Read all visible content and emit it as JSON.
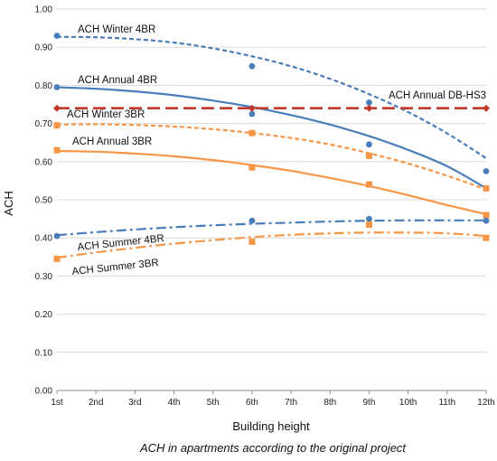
{
  "chart_data": {
    "type": "line",
    "title": "",
    "xlabel": "Building height",
    "ylabel": "ACH",
    "caption": "ACH in apartments according to the original project",
    "categories": [
      "1st",
      "2nd",
      "3rd",
      "4th",
      "5th",
      "6th",
      "7th",
      "8th",
      "9th",
      "10th",
      "11th",
      "12th"
    ],
    "ylim": [
      0,
      1.0
    ],
    "yticks": [
      "0.00",
      "0.10",
      "0.20",
      "0.30",
      "0.40",
      "0.50",
      "0.60",
      "0.70",
      "0.80",
      "0.90",
      "1.00"
    ],
    "grid": true,
    "legend": "none",
    "series": [
      {
        "name": "ACH Winter 4BR",
        "color": "#4a7ebb",
        "dash": "dashed",
        "marker": "circle",
        "points": [
          [
            "1st",
            0.93
          ],
          [
            "6th",
            0.85
          ],
          [
            "9th",
            0.755
          ],
          [
            "12th",
            0.575
          ]
        ],
        "trend": [
          0.927,
          0.926,
          0.921,
          0.912,
          0.897,
          0.876,
          0.85,
          0.817,
          0.777,
          0.73,
          0.674,
          0.609
        ]
      },
      {
        "name": "ACH Annual 4BR",
        "color": "#4a7ebb",
        "dash": "solid",
        "marker": "circle",
        "points": [
          [
            "1st",
            0.795
          ],
          [
            "6th",
            0.725
          ],
          [
            "9th",
            0.645
          ],
          [
            "12th",
            0.53
          ]
        ],
        "trend": [
          0.795,
          0.791,
          0.784,
          0.774,
          0.76,
          0.743,
          0.722,
          0.697,
          0.667,
          0.631,
          0.588,
          0.53
        ]
      },
      {
        "name": "ACH Annual DB-HS3",
        "color": "#c0392b",
        "dash": "longdash",
        "marker": "diamond",
        "points": [
          [
            "1st",
            0.74
          ],
          [
            "6th",
            0.74
          ],
          [
            "9th",
            0.74
          ],
          [
            "12th",
            0.74
          ]
        ],
        "trend": [
          0.74,
          0.74,
          0.74,
          0.74,
          0.74,
          0.74,
          0.74,
          0.74,
          0.74,
          0.74,
          0.74,
          0.74
        ]
      },
      {
        "name": "ACH Winter 3BR",
        "color": "#f79646",
        "dash": "dashed",
        "marker": "square",
        "points": [
          [
            "1st",
            0.695
          ],
          [
            "6th",
            0.675
          ],
          [
            "9th",
            0.615
          ],
          [
            "12th",
            0.53
          ]
        ],
        "trend": [
          0.697,
          0.698,
          0.696,
          0.692,
          0.685,
          0.675,
          0.662,
          0.645,
          0.622,
          0.595,
          0.563,
          0.527
        ]
      },
      {
        "name": "ACH Annual 3BR",
        "color": "#f79646",
        "dash": "solid",
        "marker": "square",
        "points": [
          [
            "1st",
            0.63
          ],
          [
            "6th",
            0.585
          ],
          [
            "9th",
            0.54
          ],
          [
            "12th",
            0.46
          ]
        ],
        "trend": [
          0.628,
          0.626,
          0.621,
          0.614,
          0.604,
          0.591,
          0.576,
          0.557,
          0.536,
          0.512,
          0.486,
          0.462
        ]
      },
      {
        "name": "ACH Summer 4BR",
        "color": "#4a7ebb",
        "dash": "dashdot",
        "marker": "circle",
        "points": [
          [
            "1st",
            0.405
          ],
          [
            "6th",
            0.445
          ],
          [
            "9th",
            0.45
          ],
          [
            "12th",
            0.445
          ]
        ],
        "trend": [
          0.407,
          0.415,
          0.422,
          0.428,
          0.433,
          0.437,
          0.44,
          0.443,
          0.445,
          0.446,
          0.446,
          0.446
        ]
      },
      {
        "name": "ACH Summer 3BR",
        "color": "#f79646",
        "dash": "dashdot",
        "marker": "square",
        "points": [
          [
            "1st",
            0.345
          ],
          [
            "6th",
            0.39
          ],
          [
            "9th",
            0.435
          ],
          [
            "12th",
            0.4
          ]
        ],
        "trend": [
          0.348,
          0.362,
          0.374,
          0.385,
          0.394,
          0.402,
          0.408,
          0.412,
          0.414,
          0.414,
          0.412,
          0.405
        ]
      }
    ],
    "annotations": [
      {
        "text": "ACH Winter 4BR",
        "series": "ACH Winter 4BR"
      },
      {
        "text": "ACH Annual 4BR",
        "series": "ACH Annual 4BR"
      },
      {
        "text": "ACH Annual DB-HS3",
        "series": "ACH Annual DB-HS3"
      },
      {
        "text": "ACH Winter 3BR",
        "series": "ACH Winter 3BR"
      },
      {
        "text": "ACH Annual 3BR",
        "series": "ACH Annual 3BR"
      },
      {
        "text": "ACH Summer 4BR",
        "series": "ACH Summer 4BR"
      },
      {
        "text": "ACH Summer 3BR",
        "series": "ACH Summer 3BR"
      }
    ]
  }
}
